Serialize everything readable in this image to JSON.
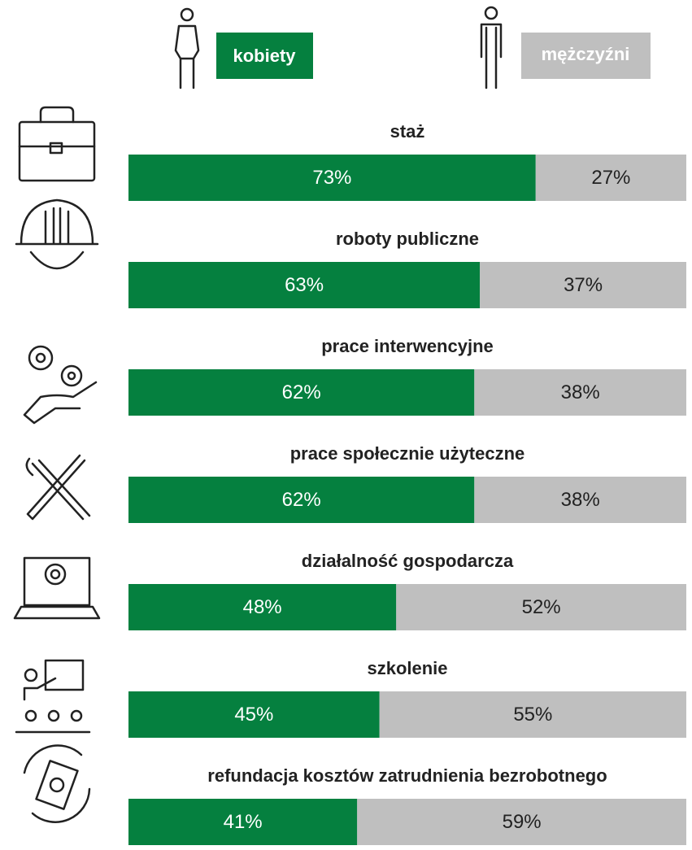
{
  "chart_data": {
    "type": "stacked-bar-100",
    "categories": [
      "staż",
      "roboty publiczne",
      "prace interwencyjne",
      "prace społecznie użyteczne",
      "działalność gospodarcza",
      "szkolenie",
      "refundacja kosztów zatrudnienia bezrobotnego"
    ],
    "series": [
      {
        "name": "kobiety",
        "color": "#05803f",
        "values": [
          73,
          63,
          62,
          62,
          48,
          45,
          41
        ],
        "value_labels": [
          "73%",
          "63%",
          "62%",
          "62%",
          "48%",
          "45%",
          "41%"
        ]
      },
      {
        "name": "mężczyźni",
        "color": "#bfbfbf",
        "values": [
          27,
          37,
          38,
          38,
          52,
          55,
          59
        ],
        "value_labels": [
          "27%",
          "37%",
          "38%",
          "38%",
          "52%",
          "55%",
          "59%"
        ]
      }
    ],
    "xlim": [
      0,
      100
    ]
  }
}
